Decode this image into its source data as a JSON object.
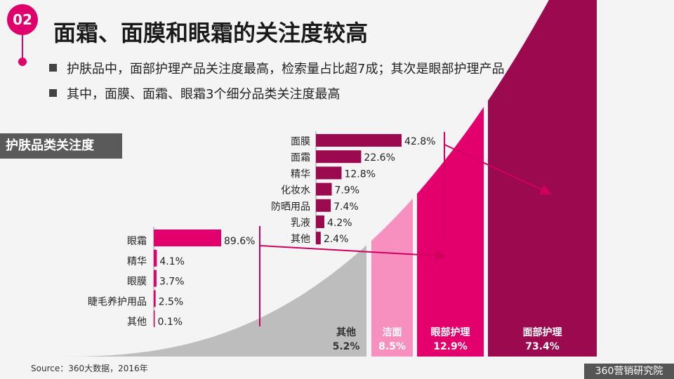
{
  "header": {
    "badge": "02",
    "title": "面霜、面膜和眼霜的关注度较高",
    "bullets": [
      "护肤品中，面部护理产品关注度最高，检索量占比超7成；其次是眼部护理产品",
      "其中，面膜、面霜、眼霜3个细分品类关注度最高"
    ]
  },
  "section_label": "护肤品类关注度",
  "chart_data": [
    {
      "type": "area",
      "title": "",
      "categories": [
        "其他",
        "洁面",
        "眼部护理",
        "面部护理"
      ],
      "values": [
        5.2,
        8.5,
        12.9,
        73.4
      ],
      "labels": [
        "5.2%",
        "8.5%",
        "12.9%",
        "73.4%"
      ],
      "colors": [
        "#bdbdbd",
        "#f78fbf",
        "#e4006c",
        "#9b0a4f"
      ]
    },
    {
      "type": "bar",
      "orientation": "horizontal",
      "title": "",
      "categories": [
        "面膜",
        "面霜",
        "精华",
        "化妆水",
        "防晒用品",
        "乳液",
        "其他"
      ],
      "values": [
        42.8,
        22.6,
        12.8,
        7.9,
        7.4,
        4.2,
        2.4
      ],
      "labels": [
        "42.8%",
        "22.6%",
        "12.8%",
        "7.9%",
        "7.4%",
        "4.2%",
        "2.4%"
      ],
      "color": "#9b0a4f",
      "parent": "面部护理"
    },
    {
      "type": "bar",
      "orientation": "horizontal",
      "title": "",
      "categories": [
        "眼霜",
        "精华",
        "眼膜",
        "睫毛养护用品",
        "其他"
      ],
      "values": [
        89.6,
        4.1,
        3.7,
        2.5,
        0.1
      ],
      "labels": [
        "89.6%",
        "4.1%",
        "3.7%",
        "2.5%",
        "0.1%"
      ],
      "color": "#e4006c",
      "parent": "眼部护理"
    }
  ],
  "source": "Source：360大数据，2016年",
  "brand": "360营销研究院"
}
